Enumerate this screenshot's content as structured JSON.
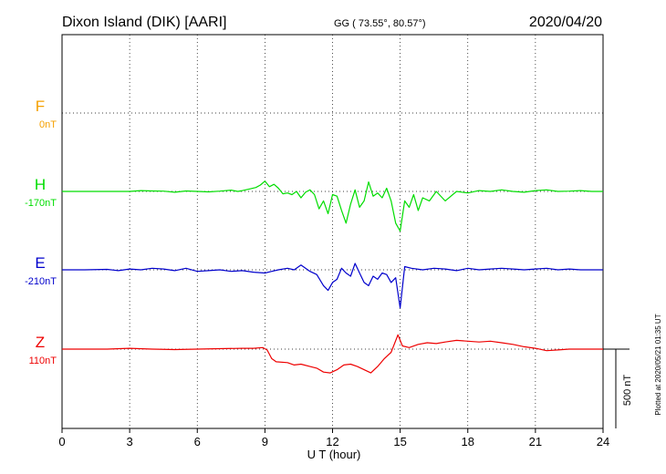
{
  "header": {
    "station": "Dixon Island (DIK)  [AARI]",
    "coords": "GG ( 73.55°,  80.57°)",
    "date": "2020/04/20"
  },
  "footer_note": "Plotted at 2020/05/21 01:35 UT",
  "scale_label": "500 nT",
  "colors": {
    "F": "#f5a000",
    "H": "#00dd00",
    "E": "#0000cc",
    "Z": "#ee0000",
    "grid": "#000000"
  },
  "chart_data": {
    "type": "line",
    "title": "Dixon Island (DIK)  [AARI]",
    "xlabel": "U T (hour)",
    "ylabel": "",
    "xlim": [
      0,
      24
    ],
    "x_ticks": [
      "0",
      "3",
      "6",
      "9",
      "12",
      "15",
      "18",
      "21",
      "24"
    ],
    "grid": true,
    "scale_bar_nT": 500,
    "series": [
      {
        "name": "F",
        "baseline_label": "0nT",
        "x": [],
        "values": []
      },
      {
        "name": "H",
        "baseline_label": "-170nT",
        "x": [
          0,
          1,
          2,
          3,
          3.5,
          4,
          4.5,
          5,
          5.5,
          6,
          6.5,
          7,
          7.5,
          7.8,
          8,
          8.3,
          8.6,
          8.8,
          9,
          9.2,
          9.4,
          9.6,
          9.8,
          10,
          10.2,
          10.4,
          10.6,
          10.8,
          11,
          11.2,
          11.4,
          11.6,
          11.8,
          12,
          12.2,
          12.4,
          12.6,
          12.8,
          13,
          13.2,
          13.4,
          13.6,
          13.8,
          14,
          14.2,
          14.4,
          14.6,
          14.8,
          15,
          15.2,
          15.4,
          15.6,
          15.8,
          16,
          16.3,
          16.6,
          17,
          17.5,
          18,
          18.5,
          19,
          19.5,
          20,
          20.5,
          21,
          21.5,
          22,
          22.5,
          23,
          23.5,
          24
        ],
        "values": [
          0,
          0,
          0,
          0,
          5,
          3,
          2,
          -5,
          3,
          0,
          -3,
          2,
          8,
          0,
          5,
          15,
          25,
          40,
          65,
          30,
          45,
          20,
          -15,
          -10,
          -20,
          0,
          -40,
          -5,
          10,
          -20,
          -110,
          -60,
          -140,
          -20,
          -30,
          -120,
          -200,
          -80,
          10,
          -100,
          -60,
          60,
          -30,
          -10,
          -40,
          20,
          -60,
          -200,
          -250,
          -60,
          -100,
          -20,
          -120,
          -40,
          -60,
          0,
          -60,
          0,
          -10,
          5,
          0,
          10,
          0,
          -5,
          5,
          10,
          0,
          2,
          5,
          0,
          0
        ]
      },
      {
        "name": "E",
        "baseline_label": "-210nT",
        "x": [
          0,
          1,
          2,
          2.5,
          3,
          3.5,
          4,
          4.5,
          5,
          5.5,
          6,
          6.5,
          7,
          7.5,
          8,
          8.5,
          9,
          9.3,
          9.6,
          10,
          10.3,
          10.6,
          11,
          11.3,
          11.6,
          11.8,
          12,
          12.2,
          12.4,
          12.6,
          12.8,
          13,
          13.2,
          13.4,
          13.6,
          13.8,
          14,
          14.2,
          14.4,
          14.6,
          14.8,
          15,
          15.2,
          15.5,
          16,
          16.5,
          17,
          17.5,
          18,
          18.5,
          19,
          19.5,
          20,
          20.5,
          21,
          21.5,
          22,
          22.5,
          23,
          23.5,
          24
        ],
        "values": [
          0,
          0,
          3,
          -5,
          5,
          0,
          10,
          5,
          -5,
          10,
          -10,
          -5,
          0,
          -10,
          -5,
          -15,
          -20,
          -10,
          0,
          10,
          0,
          30,
          -10,
          -30,
          -100,
          -130,
          -80,
          -60,
          10,
          -20,
          -40,
          40,
          -20,
          -80,
          -100,
          -40,
          -60,
          -20,
          -30,
          -80,
          -50,
          -240,
          20,
          10,
          0,
          10,
          5,
          -5,
          10,
          0,
          5,
          10,
          5,
          0,
          5,
          10,
          0,
          5,
          0,
          0,
          0
        ]
      },
      {
        "name": "Z",
        "baseline_label": "110nT",
        "x": [
          0,
          1,
          2,
          3,
          4,
          5,
          6,
          7,
          8,
          8.5,
          8.9,
          9.1,
          9.3,
          9.5,
          10,
          10.3,
          10.6,
          11,
          11.3,
          11.6,
          11.9,
          12.2,
          12.5,
          12.8,
          13.1,
          13.4,
          13.7,
          14,
          14.3,
          14.6,
          14.9,
          15.1,
          15.4,
          15.8,
          16.2,
          16.6,
          17,
          17.5,
          18,
          18.5,
          19,
          19.5,
          20,
          20.5,
          21,
          21.5,
          22,
          22.5,
          23,
          24
        ],
        "values": [
          0,
          0,
          0,
          5,
          0,
          -3,
          0,
          3,
          5,
          5,
          10,
          -5,
          -60,
          -80,
          -85,
          -100,
          -95,
          -110,
          -120,
          -145,
          -150,
          -130,
          -100,
          -95,
          -110,
          -130,
          -150,
          -110,
          -60,
          -20,
          90,
          20,
          10,
          30,
          40,
          35,
          45,
          55,
          50,
          45,
          50,
          40,
          30,
          15,
          5,
          -10,
          -5,
          0,
          0,
          0
        ]
      }
    ]
  }
}
